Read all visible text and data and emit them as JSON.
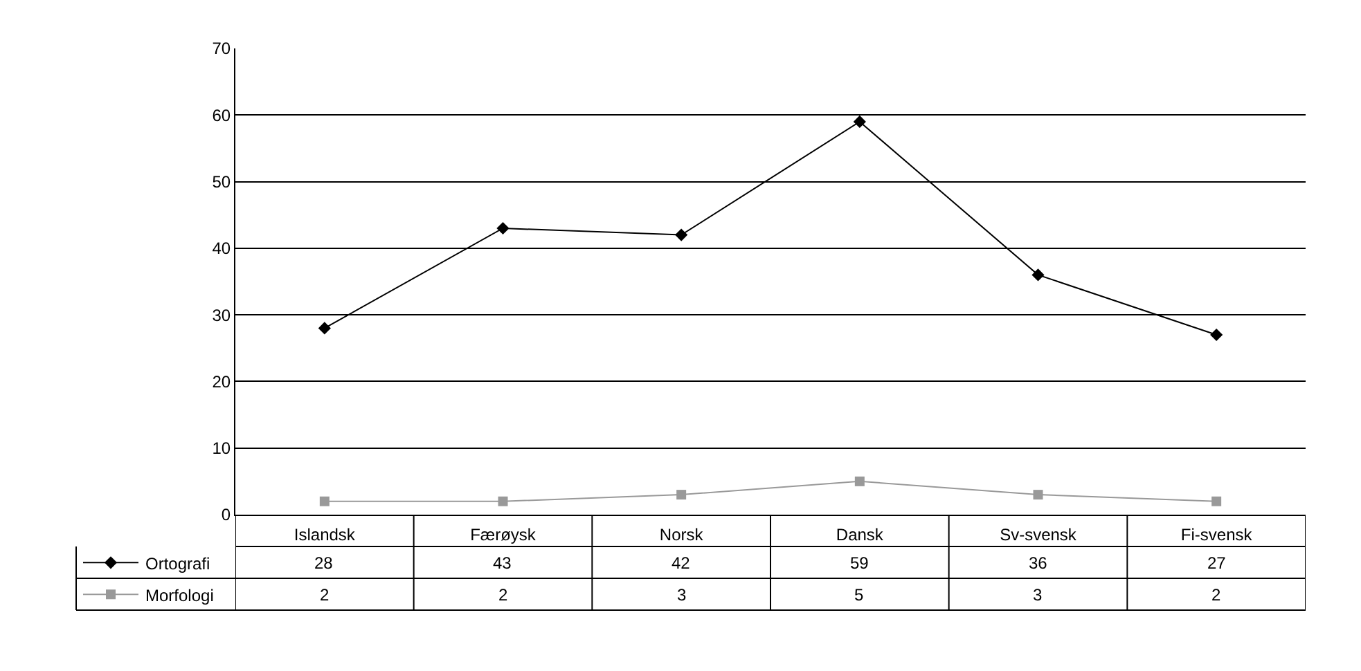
{
  "chart_data": {
    "type": "line",
    "categories": [
      "Islandsk",
      "Færøysk",
      "Norsk",
      "Dansk",
      "Sv-svensk",
      "Fi-svensk"
    ],
    "series": [
      {
        "name": "Ortografi",
        "color": "#000000",
        "marker": "diamond",
        "values": [
          28,
          43,
          42,
          59,
          36,
          27
        ]
      },
      {
        "name": "Morfologi",
        "color": "#999999",
        "marker": "square",
        "values": [
          2,
          2,
          3,
          5,
          3,
          2
        ]
      }
    ],
    "ylim": [
      0,
      70
    ],
    "yticks": [
      0,
      10,
      20,
      30,
      40,
      50,
      60,
      70
    ],
    "grid": "y",
    "legend": "bottom left",
    "data_labels": true,
    "line_style": "solid"
  }
}
